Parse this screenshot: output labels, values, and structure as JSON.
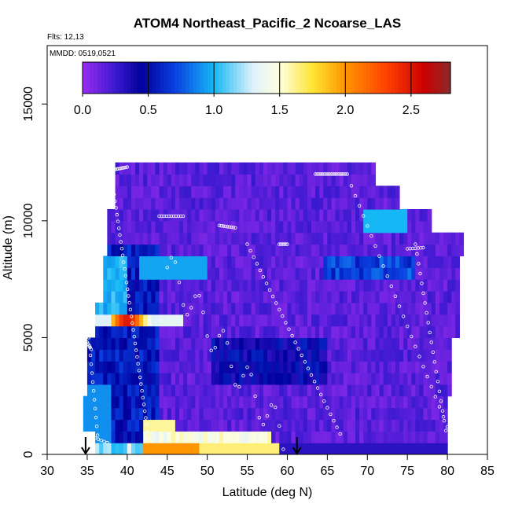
{
  "chart_data": {
    "type": "heatmap",
    "title": "ATOM4 Northeast_Pacific_2 Ncoarse_LAS",
    "flights_note": "Flts: 12,13",
    "date_note": "MMDD: 0519,0521",
    "xlabel": "Latitude (deg N)",
    "ylabel": "Altitude (m)",
    "xlim": [
      30,
      85
    ],
    "ylim": [
      0,
      17500
    ],
    "x_ticks": [
      30,
      35,
      40,
      45,
      50,
      55,
      60,
      65,
      70,
      75,
      80,
      85
    ],
    "x_tick_labels": [
      "30",
      "35",
      "40",
      "45",
      "50",
      "55",
      "60",
      "65",
      "70",
      "75",
      "80",
      "85"
    ],
    "y_ticks": [
      0,
      5000,
      10000,
      15000
    ],
    "y_tick_labels": [
      "0",
      "5000",
      "10000",
      "15000"
    ],
    "colorbar": {
      "range": [
        0,
        2.8
      ],
      "ticks": [
        0.0,
        0.5,
        1.0,
        1.5,
        2.0,
        2.5
      ],
      "tick_labels": [
        "0.0",
        "0.5",
        "1.0",
        "1.5",
        "2.0",
        "2.5"
      ],
      "stops": [
        {
          "v": 0.0,
          "color": "#9a2cf0"
        },
        {
          "v": 0.25,
          "color": "#3b19cf"
        },
        {
          "v": 0.45,
          "color": "#00009c"
        },
        {
          "v": 0.7,
          "color": "#0a3ee0"
        },
        {
          "v": 1.0,
          "color": "#15b8f5"
        },
        {
          "v": 1.3,
          "color": "#dff2fb"
        },
        {
          "v": 1.5,
          "color": "#ffffe0"
        },
        {
          "v": 1.75,
          "color": "#ffe534"
        },
        {
          "v": 2.0,
          "color": "#ff9500"
        },
        {
          "v": 2.3,
          "color": "#ff4400"
        },
        {
          "v": 2.6,
          "color": "#cc0000"
        },
        {
          "v": 2.8,
          "color": "#8c2a2a"
        }
      ]
    },
    "profile_markers_lat": [
      34.8,
      61.2
    ],
    "colors": {
      "background": "#ffffff",
      "frame": "#000000",
      "markers": "#ffffff"
    }
  }
}
